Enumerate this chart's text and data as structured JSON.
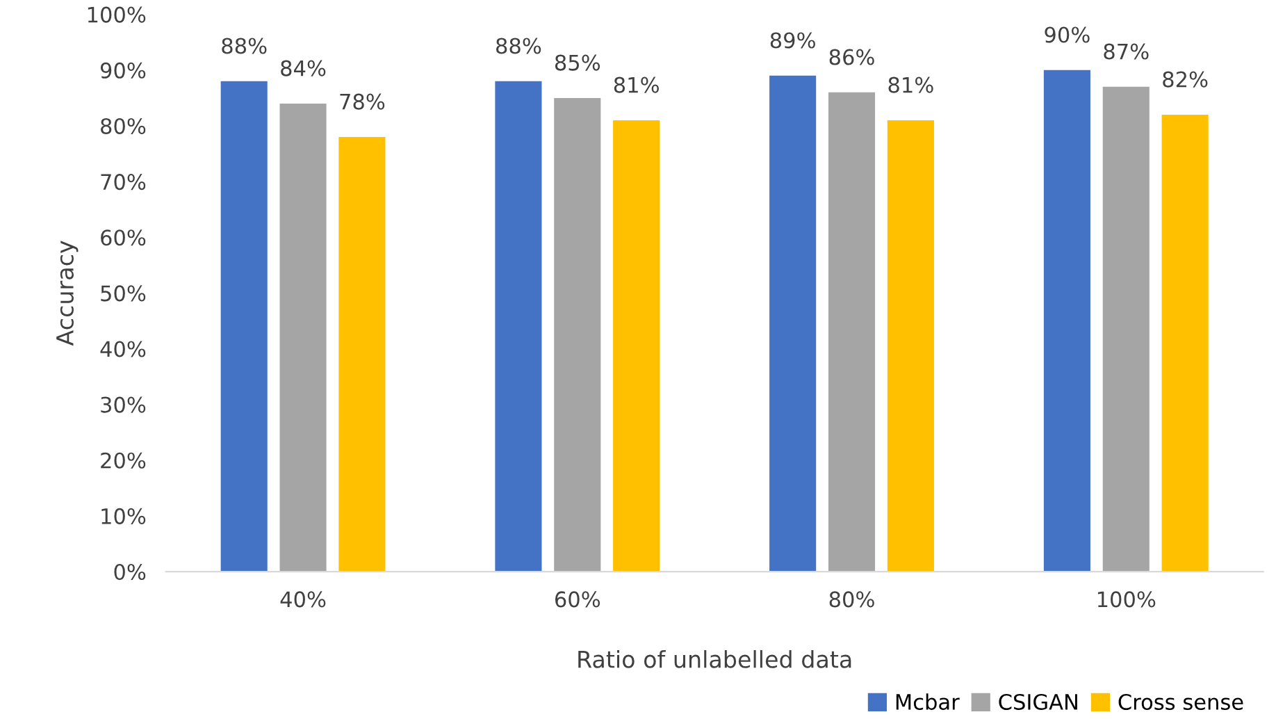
{
  "chart_data": {
    "type": "bar",
    "xlabel": "Ratio of unlabelled data",
    "ylabel": "Accuracy",
    "categories": [
      "40%",
      "60%",
      "80%",
      "100%"
    ],
    "series": [
      {
        "name": "Mcbar",
        "color": "#4472c4",
        "values": [
          88,
          88,
          89,
          90
        ],
        "value_labels": [
          "88%",
          "88%",
          "89%",
          "90%"
        ]
      },
      {
        "name": "CSIGAN",
        "color": "#a5a5a5",
        "values": [
          84,
          85,
          86,
          87
        ],
        "value_labels": [
          "84%",
          "85%",
          "86%",
          "87%"
        ]
      },
      {
        "name": "Cross sense",
        "color": "#ffc000",
        "values": [
          78,
          81,
          81,
          82
        ],
        "value_labels": [
          "78%",
          "81%",
          "81%",
          "82%"
        ]
      }
    ],
    "ylim": [
      0,
      100
    ],
    "yticks": [
      {
        "value": 0,
        "label": "0%"
      },
      {
        "value": 10,
        "label": "10%"
      },
      {
        "value": 20,
        "label": "20%"
      },
      {
        "value": 30,
        "label": "30%"
      },
      {
        "value": 40,
        "label": "40%"
      },
      {
        "value": 50,
        "label": "50%"
      },
      {
        "value": 60,
        "label": "60%"
      },
      {
        "value": 70,
        "label": "70%"
      },
      {
        "value": 80,
        "label": "80%"
      },
      {
        "value": 90,
        "label": "90%"
      },
      {
        "value": 100,
        "label": "100%"
      }
    ],
    "grid": false,
    "legend": "bottom right"
  }
}
